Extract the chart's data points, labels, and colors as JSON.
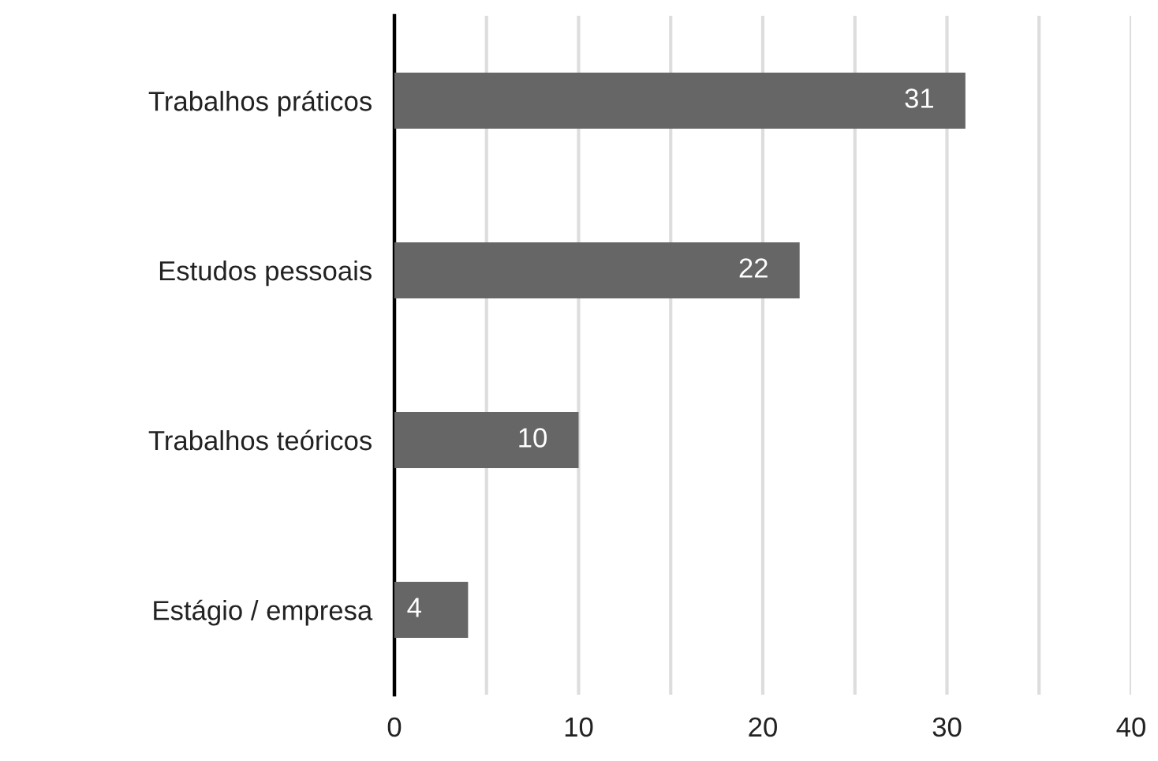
{
  "chart_data": {
    "type": "bar",
    "orientation": "horizontal",
    "categories": [
      "Trabalhos práticos",
      "Estudos pessoais",
      "Trabalhos teóricos",
      "Estágio / empresa"
    ],
    "values": [
      31,
      22,
      10,
      4
    ],
    "color": "#666666",
    "xlim": [
      0,
      40
    ],
    "xticks": [
      0,
      {
        "value": 5,
        "label": null
      },
      10,
      {
        "value": 15,
        "label": null
      },
      20,
      {
        "value": 25,
        "label": null
      },
      30,
      {
        "value": 35,
        "label": null
      },
      40
    ],
    "grid": "x",
    "data_labels": true
  }
}
